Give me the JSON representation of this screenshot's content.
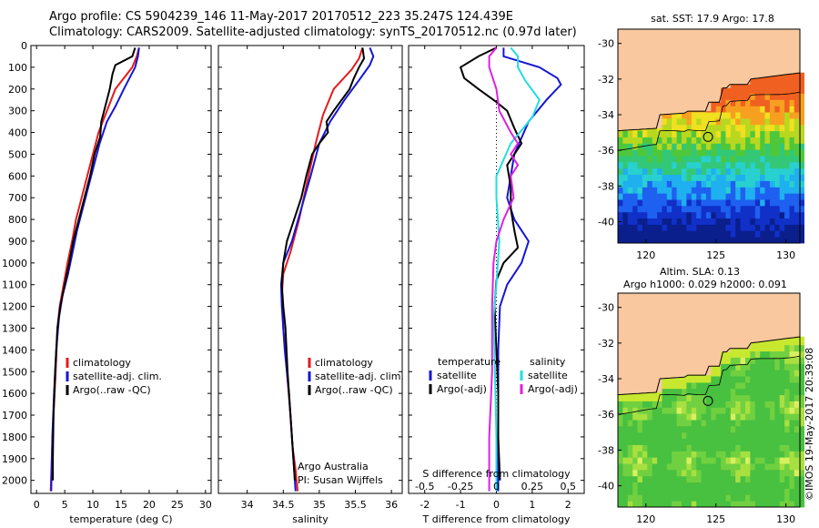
{
  "header": {
    "line1": "Argo profile: CS 5904239_146 11-May-2017 20170512_223 35.247S 124.439E",
    "line2": "Climatology: CARS2009. Satellite-adjusted climatology: synTS_20170512.nc (0.97d later)"
  },
  "colors": {
    "climatology": "#e41a1a",
    "satellite": "#1515d4",
    "argo": "#000000",
    "sal_satellite": "#22dde0",
    "sal_argo": "#e020e0",
    "land": "#f9c89e"
  },
  "chart_data": [
    {
      "type": "line",
      "xlabel": "temperature (deg C)",
      "ylabel": "",
      "xlim": [
        -1,
        31
      ],
      "ylim": [
        2060,
        0
      ],
      "xticks": [
        0,
        5,
        10,
        15,
        20,
        25,
        30
      ],
      "yticks": [
        0,
        100,
        200,
        300,
        400,
        500,
        600,
        700,
        800,
        900,
        1000,
        1100,
        1200,
        1300,
        1400,
        1500,
        1600,
        1700,
        1800,
        1900,
        2000
      ],
      "legend": [
        "climatology",
        "satellite-adj. clim.",
        "Argo(..raw -QC)"
      ],
      "series": [
        {
          "name": "climatology",
          "color": "#e41a1a",
          "points": [
            [
              18.2,
              10
            ],
            [
              17.8,
              50
            ],
            [
              17.0,
              100
            ],
            [
              15.5,
              150
            ],
            [
              14.0,
              200
            ],
            [
              12.5,
              300
            ],
            [
              11.0,
              400
            ],
            [
              10.0,
              500
            ],
            [
              9.0,
              600
            ],
            [
              8.0,
              700
            ],
            [
              7.0,
              800
            ],
            [
              6.3,
              900
            ],
            [
              5.5,
              1000
            ],
            [
              4.8,
              1100
            ],
            [
              4.1,
              1200
            ],
            [
              3.7,
              1300
            ],
            [
              3.4,
              1500
            ],
            [
              3.0,
              1700
            ],
            [
              2.7,
              1900
            ],
            [
              2.5,
              2050
            ]
          ]
        },
        {
          "name": "satellite-adj. clim.",
          "color": "#1515d4",
          "points": [
            [
              18.2,
              10
            ],
            [
              18.0,
              50
            ],
            [
              17.5,
              100
            ],
            [
              16.5,
              150
            ],
            [
              15.5,
              200
            ],
            [
              14.0,
              280
            ],
            [
              12.5,
              350
            ],
            [
              11.2,
              450
            ],
            [
              10.2,
              550
            ],
            [
              9.2,
              650
            ],
            [
              8.2,
              750
            ],
            [
              7.2,
              850
            ],
            [
              6.4,
              950
            ],
            [
              5.6,
              1050
            ],
            [
              4.6,
              1150
            ],
            [
              4.0,
              1250
            ],
            [
              3.5,
              1400
            ],
            [
              3.1,
              1600
            ],
            [
              2.8,
              1800
            ],
            [
              2.6,
              2050
            ]
          ]
        },
        {
          "name": "Argo(..raw -QC)",
          "color": "#000000",
          "points": [
            [
              17.5,
              10
            ],
            [
              17.0,
              50
            ],
            [
              14.0,
              90
            ],
            [
              13.5,
              130
            ],
            [
              13.0,
              200
            ],
            [
              12.0,
              300
            ],
            [
              11.5,
              350
            ],
            [
              11.3,
              420
            ],
            [
              10.3,
              500
            ],
            [
              9.5,
              600
            ],
            [
              8.5,
              700
            ],
            [
              7.5,
              800
            ],
            [
              6.5,
              900
            ],
            [
              5.8,
              1000
            ],
            [
              5.0,
              1100
            ],
            [
              4.2,
              1200
            ],
            [
              3.7,
              1300
            ],
            [
              3.3,
              1500
            ],
            [
              3.0,
              1700
            ],
            [
              2.9,
              1900
            ],
            [
              2.9,
              2000
            ]
          ]
        }
      ]
    },
    {
      "type": "line",
      "xlabel": "salinity",
      "ylabel": "",
      "xlim": [
        33.6,
        36.15
      ],
      "ylim": [
        2060,
        0
      ],
      "xticks": [
        34,
        34.5,
        35,
        35.5,
        36
      ],
      "legend": [
        "climatology",
        "satellite-adj. clim.",
        "Argo(..raw -QC)"
      ],
      "series": [
        {
          "name": "climatology",
          "color": "#e41a1a",
          "points": [
            [
              35.6,
              10
            ],
            [
              35.55,
              60
            ],
            [
              35.45,
              110
            ],
            [
              35.2,
              200
            ],
            [
              35.05,
              320
            ],
            [
              34.95,
              450
            ],
            [
              34.85,
              600
            ],
            [
              34.72,
              800
            ],
            [
              34.6,
              950
            ],
            [
              34.5,
              1050
            ],
            [
              34.48,
              1150
            ],
            [
              34.5,
              1300
            ],
            [
              34.55,
              1500
            ],
            [
              34.6,
              1700
            ],
            [
              34.63,
              1850
            ],
            [
              34.67,
              1950
            ],
            [
              34.7,
              2050
            ]
          ]
        },
        {
          "name": "satellite-adj. clim.",
          "color": "#1515d4",
          "points": [
            [
              35.7,
              10
            ],
            [
              35.75,
              50
            ],
            [
              35.7,
              90
            ],
            [
              35.55,
              160
            ],
            [
              35.35,
              250
            ],
            [
              35.15,
              350
            ],
            [
              35.0,
              450
            ],
            [
              34.88,
              600
            ],
            [
              34.75,
              750
            ],
            [
              34.62,
              900
            ],
            [
              34.5,
              1000
            ],
            [
              34.47,
              1100
            ],
            [
              34.48,
              1200
            ],
            [
              34.52,
              1400
            ],
            [
              34.58,
              1600
            ],
            [
              34.62,
              1800
            ],
            [
              34.66,
              2000
            ],
            [
              34.67,
              2050
            ]
          ]
        },
        {
          "name": "Argo(..raw -QC)",
          "color": "#000000",
          "points": [
            [
              35.6,
              10
            ],
            [
              35.62,
              60
            ],
            [
              35.55,
              100
            ],
            [
              35.48,
              150
            ],
            [
              35.42,
              200
            ],
            [
              35.2,
              300
            ],
            [
              35.1,
              350
            ],
            [
              35.12,
              400
            ],
            [
              35.0,
              450
            ],
            [
              34.9,
              500
            ],
            [
              34.82,
              600
            ],
            [
              34.75,
              700
            ],
            [
              34.65,
              800
            ],
            [
              34.55,
              900
            ],
            [
              34.5,
              1000
            ],
            [
              34.48,
              1100
            ],
            [
              34.5,
              1200
            ],
            [
              34.53,
              1300
            ],
            [
              34.56,
              1500
            ],
            [
              34.58,
              1600
            ],
            [
              34.6,
              1700
            ],
            [
              34.62,
              1800
            ],
            [
              34.64,
              1900
            ],
            [
              34.66,
              2000
            ]
          ]
        }
      ],
      "annotations": [
        "Argo Australia",
        "PI: Susan Wijffels"
      ]
    },
    {
      "type": "line",
      "xlabel": "T difference from climatology",
      "x2label": "S difference from climatology",
      "xlim": [
        -2.45,
        2.45
      ],
      "ylim": [
        2060,
        0
      ],
      "xticks": [
        -2,
        -1,
        0,
        1,
        2
      ],
      "x2ticks": [
        -0.5,
        -0.25,
        0,
        0.25,
        0.5
      ],
      "legend_titles": [
        "temperature",
        "salinity"
      ],
      "legend": [
        "satellite",
        "Argo(-adj)",
        "satellite",
        "Argo(-adj)"
      ],
      "series": [
        {
          "name": "satellite",
          "group": "temperature",
          "color": "#1515d4",
          "points": [
            [
              0.2,
              10
            ],
            [
              0.2,
              50
            ],
            [
              1.2,
              100
            ],
            [
              1.7,
              150
            ],
            [
              1.8,
              180
            ],
            [
              1.4,
              250
            ],
            [
              0.9,
              350
            ],
            [
              0.5,
              500
            ],
            [
              0.4,
              600
            ],
            [
              0.3,
              700
            ],
            [
              0.5,
              800
            ],
            [
              0.9,
              900
            ],
            [
              0.7,
              1000
            ],
            [
              0.3,
              1100
            ],
            [
              0.1,
              1200
            ],
            [
              0.05,
              1400
            ],
            [
              0.05,
              1600
            ],
            [
              0.05,
              1800
            ],
            [
              0.05,
              2050
            ]
          ]
        },
        {
          "name": "Argo(-adj)",
          "group": "temperature",
          "color": "#000000",
          "points": [
            [
              0.0,
              10
            ],
            [
              -0.5,
              50
            ],
            [
              -1.0,
              100
            ],
            [
              -0.9,
              150
            ],
            [
              -0.5,
              200
            ],
            [
              0.0,
              260
            ],
            [
              0.3,
              300
            ],
            [
              0.5,
              380
            ],
            [
              0.7,
              450
            ],
            [
              0.5,
              500
            ],
            [
              0.3,
              550
            ],
            [
              0.4,
              650
            ],
            [
              0.4,
              750
            ],
            [
              0.5,
              850
            ],
            [
              0.6,
              930
            ],
            [
              0.2,
              1000
            ],
            [
              0.0,
              1080
            ],
            [
              -0.05,
              1200
            ],
            [
              0.0,
              1400
            ],
            [
              0.05,
              1600
            ],
            [
              0.05,
              1800
            ],
            [
              0.1,
              2000
            ]
          ]
        },
        {
          "name": "satellite",
          "group": "salinity",
          "color": "#22dde0",
          "points": [
            [
              0.1,
              10
            ],
            [
              0.15,
              50
            ],
            [
              0.15,
              100
            ],
            [
              0.2,
              160
            ],
            [
              0.3,
              250
            ],
            [
              0.25,
              330
            ],
            [
              0.1,
              450
            ],
            [
              0.0,
              600
            ],
            [
              0.0,
              700
            ],
            [
              0.02,
              900
            ],
            [
              0.0,
              1100
            ],
            [
              -0.02,
              1250
            ],
            [
              -0.01,
              1500
            ],
            [
              0.0,
              1800
            ],
            [
              0.0,
              2050
            ]
          ]
        },
        {
          "name": "Argo(-adj)",
          "group": "salinity",
          "color": "#e020e0",
          "points": [
            [
              0.0,
              10
            ],
            [
              -0.05,
              50
            ],
            [
              -0.05,
              100
            ],
            [
              0.0,
              200
            ],
            [
              0.02,
              300
            ],
            [
              0.1,
              400
            ],
            [
              0.15,
              450
            ],
            [
              0.1,
              500
            ],
            [
              0.15,
              550
            ],
            [
              0.1,
              600
            ],
            [
              0.12,
              700
            ],
            [
              0.05,
              800
            ],
            [
              0.0,
              900
            ],
            [
              -0.02,
              1000
            ],
            [
              -0.03,
              1200
            ],
            [
              -0.03,
              1500
            ],
            [
              -0.05,
              1800
            ],
            [
              -0.05,
              2050
            ]
          ]
        }
      ]
    },
    {
      "type": "heatmap",
      "title": "sat. SST: 17.9 Argo: 17.8",
      "xticks": [
        120,
        125,
        130
      ],
      "yticks": [
        -30,
        -32,
        -34,
        -36,
        -38,
        -40
      ],
      "xlim": [
        118,
        131
      ],
      "ylim": [
        -41.2,
        -29.2
      ],
      "marker": {
        "lon": 124.439,
        "lat": -35.247
      }
    },
    {
      "type": "heatmap",
      "title": "Altim. SLA: 0.13",
      "subtitle": "Argo h1000: 0.029 h2000: 0.091",
      "xticks": [
        120,
        125,
        130
      ],
      "yticks": [
        -30,
        -32,
        -34,
        -36,
        -38,
        -40
      ],
      "xlim": [
        118,
        131
      ],
      "ylim": [
        -41.2,
        -29.2
      ],
      "marker": {
        "lon": 124.439,
        "lat": -35.247
      }
    }
  ],
  "stamp": "©IMOS 19-May-2017 20:39:08"
}
